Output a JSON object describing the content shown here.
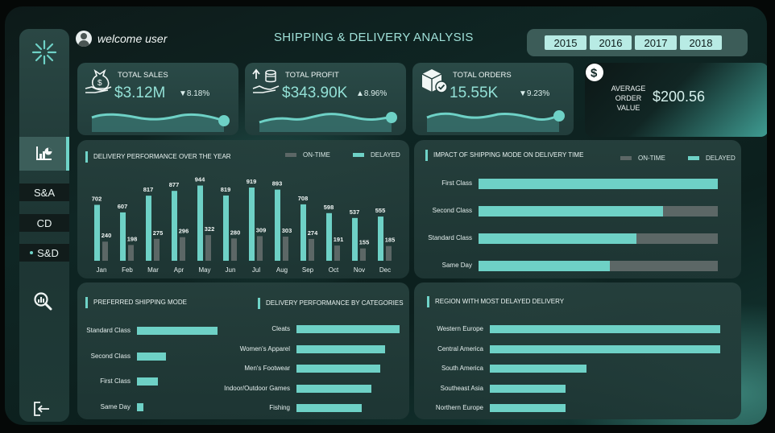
{
  "header": {
    "welcome": "welcome user",
    "title": "SHIPPING & DELIVERY ANALYSIS",
    "years": [
      "2015",
      "2016",
      "2017",
      "2018"
    ]
  },
  "sidebar": {
    "items": [
      "S&A",
      "CD",
      "S&D"
    ],
    "active_item": "S&D"
  },
  "kpis": {
    "total_sales": {
      "label": "TOTAL SALES",
      "value": "$3.12M",
      "delta": "▼8.18%"
    },
    "total_profit": {
      "label": "TOTAL PROFIT",
      "value": "$343.90K",
      "delta": "▲8.96%"
    },
    "total_orders": {
      "label": "TOTAL ORDERS",
      "value": "15.55K",
      "delta": "▼9.23%"
    },
    "aov": {
      "label": "AVERAGE ORDER VALUE",
      "value": "$200.56"
    }
  },
  "colors": {
    "delayed": "#6ed1c6",
    "on_time": "#5c6766",
    "accent": "#6fd3c8"
  },
  "chart_data": [
    {
      "type": "bar",
      "title": "DELIVERY PERFORMANCE OVER THE YEAR",
      "categories": [
        "Jan",
        "Feb",
        "Mar",
        "Apr",
        "May",
        "Jun",
        "Jul",
        "Aug",
        "Sep",
        "Oct",
        "Nov",
        "Dec"
      ],
      "series": [
        {
          "name": "DELAYED",
          "values": [
            702,
            607,
            817,
            877,
            944,
            819,
            919,
            893,
            708,
            598,
            537,
            555
          ]
        },
        {
          "name": "ON-TIME",
          "values": [
            240,
            198,
            275,
            296,
            322,
            280,
            309,
            303,
            274,
            191,
            155,
            185
          ]
        }
      ],
      "legend": [
        "ON-TIME",
        "DELAYED"
      ],
      "legend_position": "top-right"
    },
    {
      "type": "bar",
      "orientation": "horizontal",
      "stacked": true,
      "title": "IMPACT OF SHIPPING MODE ON DELIVERY TIME",
      "categories": [
        "First Class",
        "Second Class",
        "Standard Class",
        "Same Day"
      ],
      "series": [
        {
          "name": "DELAYED",
          "values": [
            1.0,
            0.77,
            0.66,
            0.55
          ]
        },
        {
          "name": "ON-TIME",
          "values": [
            0.0,
            0.23,
            0.34,
            0.45
          ]
        }
      ],
      "legend": [
        "ON-TIME",
        "DELAYED"
      ],
      "legend_position": "top-right"
    },
    {
      "type": "bar",
      "orientation": "horizontal",
      "title": "PREFERRED SHIPPING MODE",
      "categories": [
        "Standard Class",
        "Second Class",
        "First Class",
        "Same Day"
      ],
      "values": [
        100,
        36,
        26,
        8
      ]
    },
    {
      "type": "bar",
      "orientation": "horizontal",
      "title": "DELIVERY PERFORMANCE BY CATEGORIES",
      "categories": [
        "Cleats",
        "Women's Apparel",
        "Men's Footwear",
        "Indoor/Outdoor Games",
        "Fishing"
      ],
      "values": [
        100,
        86,
        81,
        73,
        63
      ]
    },
    {
      "type": "bar",
      "orientation": "horizontal",
      "title": "REGION WITH MOST DELAYED DELIVERY",
      "categories": [
        "Western Europe",
        "Central America",
        "South America",
        "Southeast Asia",
        "Northern Europe"
      ],
      "values": [
        100,
        100,
        42,
        33,
        33
      ]
    }
  ]
}
